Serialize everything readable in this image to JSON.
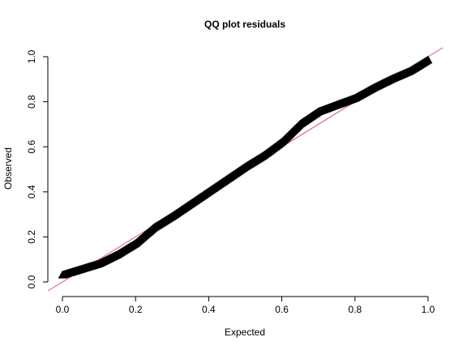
{
  "chart_data": {
    "type": "scatter",
    "title": "QQ plot residuals",
    "xlabel": "Expected",
    "ylabel": "Observed",
    "xlim": [
      0,
      1
    ],
    "ylim": [
      0,
      1
    ],
    "x_ticks": [
      "0.0",
      "0.2",
      "0.4",
      "0.6",
      "0.8",
      "1.0"
    ],
    "y_ticks": [
      "0.0",
      "0.2",
      "0.4",
      "0.6",
      "0.8",
      "1.0"
    ],
    "grid": false,
    "marker": "triangle-open",
    "point_color": "#000000",
    "reference_line": {
      "type": "identity",
      "color": "#DF536B"
    },
    "curve": [
      {
        "x": 0.0,
        "y": 0.03
      },
      {
        "x": 0.05,
        "y": 0.055
      },
      {
        "x": 0.1,
        "y": 0.08
      },
      {
        "x": 0.15,
        "y": 0.12
      },
      {
        "x": 0.2,
        "y": 0.17
      },
      {
        "x": 0.25,
        "y": 0.24
      },
      {
        "x": 0.3,
        "y": 0.29
      },
      {
        "x": 0.35,
        "y": 0.345
      },
      {
        "x": 0.4,
        "y": 0.4
      },
      {
        "x": 0.45,
        "y": 0.455
      },
      {
        "x": 0.5,
        "y": 0.51
      },
      {
        "x": 0.55,
        "y": 0.56
      },
      {
        "x": 0.6,
        "y": 0.62
      },
      {
        "x": 0.65,
        "y": 0.7
      },
      {
        "x": 0.7,
        "y": 0.755
      },
      {
        "x": 0.75,
        "y": 0.785
      },
      {
        "x": 0.8,
        "y": 0.815
      },
      {
        "x": 0.85,
        "y": 0.86
      },
      {
        "x": 0.9,
        "y": 0.9
      },
      {
        "x": 0.95,
        "y": 0.935
      },
      {
        "x": 1.0,
        "y": 0.985
      }
    ]
  }
}
